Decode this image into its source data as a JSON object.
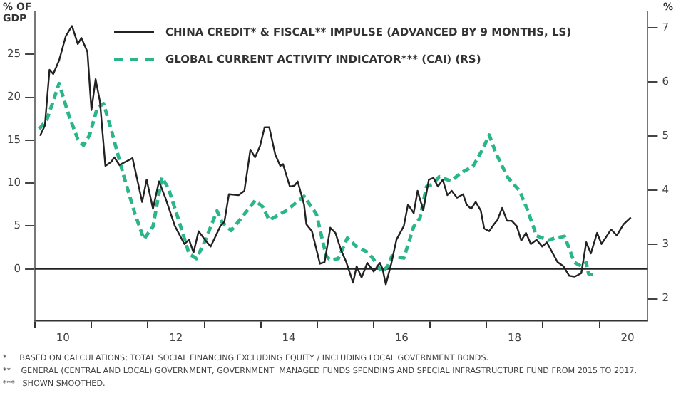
{
  "chart_data": {
    "type": "line",
    "ylabel": "% OF GDP",
    "y2label": "%",
    "xlim": [
      "2010-01-01",
      "2020-11-10"
    ],
    "xticks": [
      {
        "value": "2010",
        "label": null
      },
      {
        "value": "2010-07-01",
        "label": "10"
      },
      {
        "value": "2011",
        "label": null
      },
      {
        "value": "2012",
        "label": null
      },
      {
        "value": "2012-07-01",
        "label": "12"
      },
      {
        "value": "2013",
        "label": null
      },
      {
        "value": "2014",
        "label": null
      },
      {
        "value": "2014-07-01",
        "label": "14"
      },
      {
        "value": "2015",
        "label": null
      },
      {
        "value": "2016",
        "label": null
      },
      {
        "value": "2016-07-01",
        "label": "16"
      },
      {
        "value": "2017",
        "label": null
      },
      {
        "value": "2018",
        "label": null
      },
      {
        "value": "2018-07-01",
        "label": "18"
      },
      {
        "value": "2019",
        "label": null
      },
      {
        "value": "2020",
        "label": null
      },
      {
        "value": "2020-07-01",
        "label": "20"
      }
    ],
    "ylim": [
      -6,
      30
    ],
    "yticks": [
      0,
      5,
      10,
      15,
      20,
      25
    ],
    "y2lim": [
      1.6,
      7.3
    ],
    "y2ticks": [
      2,
      3,
      4,
      5,
      6,
      7
    ],
    "legend": "top",
    "grid": false,
    "ref_lines": [
      {
        "axis": "y",
        "value": 0,
        "color": "#222222"
      }
    ],
    "series": [
      {
        "name": "CHINA CREDIT* & FISCAL** IMPULSE (ADVANCED BY 9 MONTHS, LS)",
        "color": "#222222",
        "line_style": "solid",
        "x": [
          "2010-02-03",
          "2010-03-06",
          "2010-04-05",
          "2010-04-29",
          "2010-06-06",
          "2010-07-19",
          "2010-08-28",
          "2010-10-05",
          "2010-10-28",
          "2010-12-06",
          "2011-01-01",
          "2011-01-28",
          "2011-02-25",
          "2011-04-01",
          "2011-05-11",
          "2011-05-28",
          "2011-07-01",
          "2011-09-24",
          "2011-11-25",
          "2011-12-24",
          "2012-02-03",
          "2012-03-13",
          "2012-04-23",
          "2012-06-24",
          "2012-08-25",
          "2012-09-24",
          "2012-10-23",
          "2012-11-25",
          "2013-01-05",
          "2013-02-11",
          "2013-04-15",
          "2013-05-11",
          "2013-06-09",
          "2013-08-11",
          "2013-09-17",
          "2013-10-26",
          "2013-11-25",
          "2013-12-27",
          "2014-01-26",
          "2014-02-25",
          "2014-04-05",
          "2014-05-07",
          "2014-05-25",
          "2014-07-08",
          "2014-08-07",
          "2014-08-28",
          "2014-10-08",
          "2014-10-23",
          "2014-11-28",
          "2015-01-19",
          "2015-02-18",
          "2015-03-27",
          "2015-04-29",
          "2015-06-06",
          "2015-07-08",
          "2015-08-21",
          "2015-09-13",
          "2015-10-15",
          "2015-11-21",
          "2016-01-01",
          "2016-02-11",
          "2016-02-28",
          "2016-03-20",
          "2016-04-23",
          "2016-05-28",
          "2016-07-15",
          "2016-08-11",
          "2016-09-17",
          "2016-10-12",
          "2016-11-18",
          "2016-12-24",
          "2017-01-23",
          "2017-02-21",
          "2017-03-24",
          "2017-04-23",
          "2017-05-21",
          "2017-06-24",
          "2017-08-03",
          "2017-08-25",
          "2017-09-24",
          "2017-10-23",
          "2017-11-25",
          "2017-12-17",
          "2018-01-19",
          "2018-02-18",
          "2018-03-13",
          "2018-04-12",
          "2018-05-14",
          "2018-06-13",
          "2018-07-15",
          "2018-08-14",
          "2018-09-13",
          "2018-10-15",
          "2018-11-21",
          "2018-12-27",
          "2019-01-26",
          "2019-02-25",
          "2019-04-05",
          "2019-05-14",
          "2019-06-20",
          "2019-07-26",
          "2019-09-06",
          "2019-10-08",
          "2019-11-07",
          "2019-12-17",
          "2020-01-15",
          "2020-03-17",
          "2020-04-23",
          "2020-06-06",
          "2020-07-23"
        ],
        "values": [
          15.5,
          16.7,
          23.2,
          22.7,
          24.3,
          27.1,
          28.3,
          26.2,
          26.9,
          25.3,
          18.5,
          22.1,
          19.5,
          12.0,
          12.5,
          13.0,
          12.1,
          12.9,
          7.8,
          10.4,
          7.0,
          10.2,
          8.3,
          5.0,
          2.9,
          3.4,
          1.9,
          4.4,
          3.4,
          2.6,
          5.0,
          5.5,
          8.7,
          8.6,
          9.1,
          13.9,
          13.0,
          14.3,
          16.5,
          16.5,
          13.3,
          12.0,
          12.2,
          9.6,
          9.7,
          10.2,
          7.5,
          5.2,
          4.4,
          0.6,
          0.8,
          4.8,
          4.2,
          2.1,
          0.8,
          -1.6,
          0.3,
          -1.0,
          0.7,
          -0.3,
          0.7,
          0,
          -1.8,
          0.5,
          3.4,
          5.0,
          7.5,
          6.5,
          9.1,
          6.8,
          10.4,
          10.6,
          9.6,
          10.4,
          8.6,
          9.1,
          8.3,
          8.7,
          7.5,
          7.0,
          7.8,
          6.8,
          4.7,
          4.4,
          5.2,
          5.7,
          7.1,
          5.6,
          5.6,
          5.0,
          3.3,
          4.2,
          2.9,
          3.4,
          2.6,
          3.1,
          2.1,
          0.8,
          0.3,
          -0.8,
          -0.9,
          -0.5,
          3.1,
          1.8,
          4.2,
          2.9,
          4.6,
          3.9,
          5.2,
          6.0
        ]
      },
      {
        "name": "GLOBAL CURRENT ACTIVITY INDICATOR*** (CAI) (RS)",
        "color": "#2bb58a",
        "line_style": "dashed",
        "axis": "y2",
        "x": [
          "2010-01-28",
          "2010-03-20",
          "2010-06-06",
          "2010-08-07",
          "2010-10-05",
          "2010-11-11",
          "2010-12-20",
          "2011-02-07",
          "2011-03-20",
          "2011-05-07",
          "2011-07-23",
          "2011-10-08",
          "2011-12-06",
          "2012-02-03",
          "2012-04-01",
          "2012-05-14",
          "2012-07-23",
          "2012-09-24",
          "2012-11-11",
          "2013-01-08",
          "2013-03-24",
          "2013-04-26",
          "2013-06-24",
          "2013-09-09",
          "2013-11-25",
          "2014-01-12",
          "2014-02-25",
          "2014-06-13",
          "2014-10-08",
          "2014-12-27",
          "2015-02-28",
          "2015-03-27",
          "2015-05-18",
          "2015-07-15",
          "2015-09-13",
          "2015-11-28",
          "2016-01-15",
          "2016-02-21",
          "2016-04-01",
          "2016-04-29",
          "2016-07-15",
          "2016-09-17",
          "2016-10-28",
          "2016-12-09",
          "2017-01-15",
          "2017-03-02",
          "2017-05-18",
          "2017-07-19",
          "2017-10-05",
          "2017-12-02",
          "2018-01-19",
          "2018-03-02",
          "2018-05-18",
          "2018-08-03",
          "2018-09-20",
          "2018-11-21",
          "2019-02-07",
          "2019-03-20",
          "2019-05-21",
          "2019-07-23",
          "2019-09-06",
          "2019-10-08",
          "2019-10-23",
          "2019-11-21"
        ],
        "values": [
          5.13,
          5.31,
          5.97,
          5.39,
          4.94,
          4.83,
          5.02,
          5.51,
          5.6,
          5.14,
          4.32,
          3.58,
          3.1,
          3.33,
          4.24,
          4.03,
          3.41,
          2.83,
          2.74,
          3.08,
          3.62,
          3.41,
          3.26,
          3.53,
          3.81,
          3.7,
          3.45,
          3.62,
          3.89,
          3.56,
          2.79,
          2.71,
          2.74,
          3.12,
          2.96,
          2.85,
          2.67,
          2.5,
          2.59,
          2.79,
          2.75,
          3.33,
          3.49,
          4.07,
          4.11,
          4.25,
          4.17,
          4.32,
          4.44,
          4.73,
          5.02,
          4.69,
          4.24,
          3.99,
          3.66,
          3.16,
          3.08,
          3.12,
          3.15,
          2.67,
          2.6,
          2.67,
          2.46,
          2.44
        ]
      }
    ],
    "annotations": [
      "*     BASED ON CALCULATIONS; TOTAL SOCIAL FINANCING EXCLUDING EQUITY / INCLUDING LOCAL GOVERNMENT BONDS.",
      "**    GENERAL (CENTRAL AND LOCAL) GOVERNMENT, GOVERNMENT  MANAGED FUNDS SPENDING AND SPECIAL INFRASTRUCTURE FUND FROM 2015 TO 2017.",
      "***   SHOWN SMOOTHED."
    ]
  }
}
